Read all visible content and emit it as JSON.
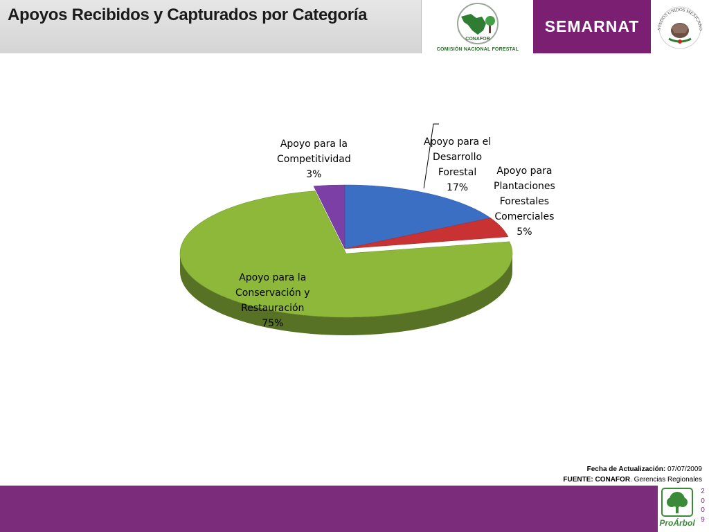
{
  "header": {
    "title": "Apoyos Recibidos y Capturados por Categoría",
    "conafor_acronym": "CONAFOR",
    "conafor_caption": "COMISIÓN NACIONAL FORESTAL",
    "semarnat_label": "SEMARNAT",
    "seal_text": "ESTADOS UNIDOS MEXICANOS",
    "colors": {
      "title_bg": "#dcdcdc",
      "semarnat_bg": "#7a1f72"
    }
  },
  "chart_data": {
    "type": "pie",
    "title": "",
    "slices": [
      {
        "name_lines": [
          "Apoyo para el",
          "Desarrollo",
          "Forestal"
        ],
        "label": "Apoyo para el Desarrollo Forestal",
        "value": 17,
        "value_label": "17%",
        "color": "#3a6fc4"
      },
      {
        "name_lines": [
          "Apoyo para",
          "Plantaciones",
          "Forestales",
          "Comerciales"
        ],
        "label": "Apoyo para Plantaciones Forestales Comerciales",
        "value": 5,
        "value_label": "5%",
        "color": "#c83232"
      },
      {
        "name_lines": [
          "Apoyo para la",
          "Conservación y",
          "Restauración"
        ],
        "label": "Apoyo para la Conservación y Restauración",
        "value": 75,
        "value_label": "75%",
        "color": "#8db83a"
      },
      {
        "name_lines": [
          "Apoyo para la",
          "Competitividad"
        ],
        "label": "Apoyo para la Competitividad",
        "value": 3,
        "value_label": "3%",
        "color": "#7c3fa6"
      }
    ],
    "legend": "none",
    "style": "3d-exploded"
  },
  "footer": {
    "date_label": "Fecha de Actualización:",
    "date_value": "07/07/2009",
    "source_label": "FUENTE: CONAFOR",
    "source_value": ". Gerencias Regionales",
    "brand": "ProÁrbol",
    "year_digits": [
      "2",
      "0",
      "0",
      "9"
    ],
    "colors": {
      "band": "#7b2d7b"
    }
  }
}
